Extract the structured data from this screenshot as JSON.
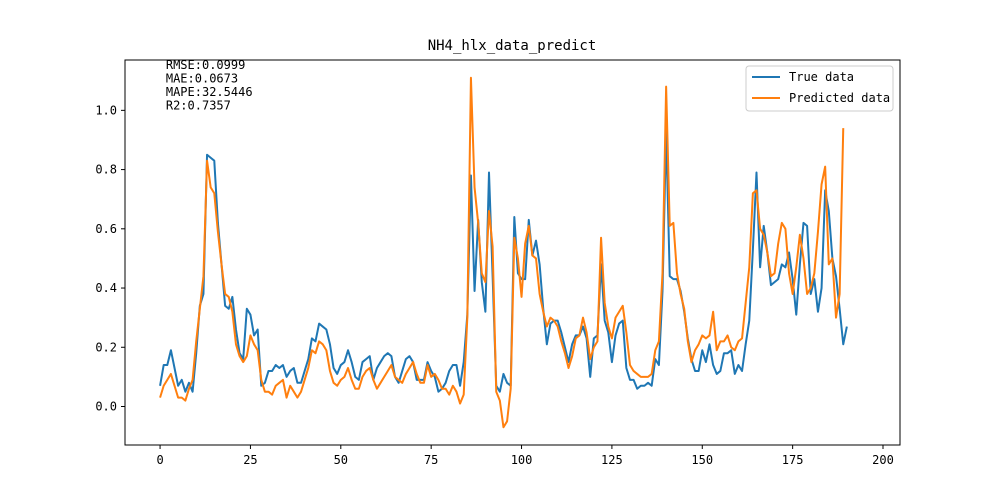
{
  "chart_data": {
    "type": "line",
    "title": "NH4_hlx_data_predict",
    "xlabel": "",
    "ylabel": "",
    "xlim": [
      -9.7,
      204.7
    ],
    "ylim": [
      -0.13,
      1.17
    ],
    "xticks": [
      0,
      25,
      50,
      75,
      100,
      125,
      150,
      175,
      200
    ],
    "xtick_labels": [
      "0",
      "25",
      "50",
      "75",
      "100",
      "125",
      "150",
      "175",
      "200"
    ],
    "yticks": [
      0.0,
      0.2,
      0.4,
      0.6,
      0.8,
      1.0
    ],
    "ytick_labels": [
      "0.0",
      "0.2",
      "0.4",
      "0.6",
      "0.8",
      "1.0"
    ],
    "grid": false,
    "legend_position": "top-right",
    "metrics": [
      "RMSE:0.0999",
      "MAE:0.0673",
      "MAPE:32.5446",
      "R2:0.7357"
    ],
    "series": [
      {
        "name": "True data",
        "color": "#1f77b4",
        "values": [
          0.07,
          0.14,
          0.14,
          0.19,
          0.13,
          0.07,
          0.09,
          0.05,
          0.08,
          0.05,
          0.18,
          0.34,
          0.38,
          0.85,
          0.84,
          0.83,
          0.62,
          0.48,
          0.34,
          0.33,
          0.37,
          0.26,
          0.18,
          0.16,
          0.33,
          0.31,
          0.24,
          0.26,
          0.07,
          0.08,
          0.12,
          0.12,
          0.14,
          0.13,
          0.14,
          0.1,
          0.12,
          0.13,
          0.08,
          0.08,
          0.12,
          0.16,
          0.23,
          0.22,
          0.28,
          0.27,
          0.26,
          0.21,
          0.13,
          0.11,
          0.14,
          0.15,
          0.19,
          0.15,
          0.1,
          0.09,
          0.15,
          0.16,
          0.17,
          0.09,
          0.13,
          0.15,
          0.17,
          0.18,
          0.17,
          0.1,
          0.08,
          0.12,
          0.16,
          0.17,
          0.15,
          0.09,
          0.09,
          0.09,
          0.15,
          0.12,
          0.1,
          0.05,
          0.06,
          0.08,
          0.12,
          0.14,
          0.14,
          0.07,
          0.15,
          0.31,
          0.78,
          0.39,
          0.63,
          0.42,
          0.32,
          0.79,
          0.44,
          0.07,
          0.05,
          0.11,
          0.08,
          0.07,
          0.64,
          0.45,
          0.43,
          0.43,
          0.63,
          0.51,
          0.56,
          0.48,
          0.33,
          0.21,
          0.28,
          0.29,
          0.29,
          0.25,
          0.2,
          0.15,
          0.21,
          0.24,
          0.24,
          0.27,
          0.23,
          0.1,
          0.23,
          0.24,
          0.48,
          0.29,
          0.25,
          0.15,
          0.24,
          0.28,
          0.29,
          0.13,
          0.09,
          0.09,
          0.06,
          0.07,
          0.07,
          0.08,
          0.07,
          0.16,
          0.14,
          0.39,
          0.93,
          0.44,
          0.43,
          0.43,
          0.39,
          0.32,
          0.23,
          0.16,
          0.12,
          0.12,
          0.19,
          0.15,
          0.21,
          0.14,
          0.11,
          0.12,
          0.18,
          0.18,
          0.19,
          0.11,
          0.14,
          0.12,
          0.21,
          0.29,
          0.53,
          0.79,
          0.47,
          0.61,
          0.52,
          0.41,
          0.42,
          0.43,
          0.48,
          0.47,
          0.52,
          0.43,
          0.31,
          0.48,
          0.62,
          0.61,
          0.38,
          0.43,
          0.32,
          0.4,
          0.73,
          0.66,
          0.5,
          0.44,
          0.33,
          0.21,
          0.27
        ]
      },
      {
        "name": "Predicted data",
        "color": "#ff7f0e",
        "values": [
          0.03,
          0.07,
          0.09,
          0.11,
          0.07,
          0.03,
          0.03,
          0.02,
          0.06,
          0.09,
          0.22,
          0.33,
          0.44,
          0.83,
          0.74,
          0.72,
          0.59,
          0.48,
          0.38,
          0.37,
          0.32,
          0.21,
          0.17,
          0.15,
          0.17,
          0.24,
          0.21,
          0.19,
          0.09,
          0.05,
          0.05,
          0.04,
          0.07,
          0.08,
          0.09,
          0.03,
          0.07,
          0.05,
          0.03,
          0.05,
          0.09,
          0.13,
          0.19,
          0.18,
          0.22,
          0.21,
          0.19,
          0.12,
          0.08,
          0.07,
          0.09,
          0.1,
          0.13,
          0.09,
          0.06,
          0.06,
          0.1,
          0.12,
          0.13,
          0.09,
          0.06,
          0.08,
          0.1,
          0.12,
          0.14,
          0.1,
          0.09,
          0.08,
          0.11,
          0.13,
          0.15,
          0.11,
          0.08,
          0.08,
          0.14,
          0.1,
          0.11,
          0.09,
          0.06,
          0.06,
          0.04,
          0.07,
          0.05,
          0.01,
          0.04,
          0.3,
          1.11,
          0.74,
          0.62,
          0.45,
          0.42,
          0.66,
          0.54,
          0.05,
          0.02,
          -0.07,
          -0.05,
          0.06,
          0.57,
          0.5,
          0.37,
          0.55,
          0.61,
          0.51,
          0.5,
          0.38,
          0.32,
          0.27,
          0.3,
          0.29,
          0.27,
          0.22,
          0.18,
          0.13,
          0.17,
          0.23,
          0.24,
          0.3,
          0.25,
          0.16,
          0.2,
          0.22,
          0.57,
          0.35,
          0.27,
          0.23,
          0.3,
          0.32,
          0.34,
          0.25,
          0.14,
          0.12,
          0.11,
          0.1,
          0.1,
          0.1,
          0.11,
          0.19,
          0.22,
          0.45,
          1.08,
          0.61,
          0.62,
          0.45,
          0.38,
          0.33,
          0.22,
          0.15,
          0.19,
          0.21,
          0.24,
          0.23,
          0.24,
          0.32,
          0.19,
          0.22,
          0.22,
          0.24,
          0.2,
          0.19,
          0.22,
          0.23,
          0.35,
          0.47,
          0.72,
          0.73,
          0.6,
          0.58,
          0.52,
          0.44,
          0.45,
          0.55,
          0.62,
          0.6,
          0.45,
          0.38,
          0.47,
          0.58,
          0.5,
          0.38,
          0.4,
          0.45,
          0.59,
          0.75,
          0.81,
          0.48,
          0.5,
          0.3,
          0.38,
          0.94
        ]
      }
    ]
  }
}
